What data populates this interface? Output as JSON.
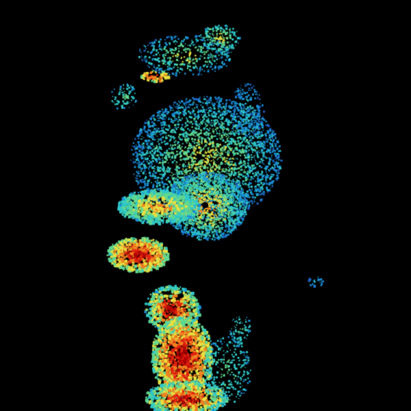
{
  "radar": {
    "background": "#000000",
    "palette": {
      "light_blue": "#1a8fd8",
      "blue": "#1f5fc0",
      "cyan": "#30c8c8",
      "green": "#60d890",
      "yellow": "#e8e040",
      "orange": "#f08020",
      "red": "#e02010",
      "dark_red": "#b00000"
    }
  }
}
